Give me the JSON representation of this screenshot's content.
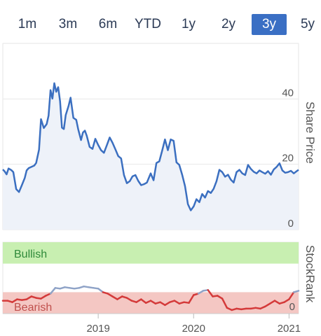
{
  "range_tabs": {
    "items": [
      "1m",
      "3m",
      "6m",
      "YTD",
      "1y",
      "2y",
      "3y",
      "5y"
    ],
    "selected": "3y"
  },
  "chart_data": [
    {
      "type": "line",
      "title": "",
      "xlabel": "",
      "ylabel": "Share Price",
      "ylim": [
        0,
        57
      ],
      "yticks": [
        "0",
        "20",
        "40"
      ],
      "xticks": [
        "2019",
        "2020",
        "2021"
      ],
      "grid": true,
      "color": "#3b6fc0",
      "fill": "#eef2f9",
      "x": [
        2018.0,
        2018.02,
        2018.04,
        2018.06,
        2018.09,
        2018.11,
        2018.14,
        2018.17,
        2018.2,
        2018.23,
        2018.25,
        2018.27,
        2018.3,
        2018.33,
        2018.35,
        2018.38,
        2018.4,
        2018.43,
        2018.46,
        2018.48,
        2018.5,
        2018.52,
        2018.54,
        2018.56,
        2018.58,
        2018.6,
        2018.62,
        2018.64,
        2018.66,
        2018.69,
        2018.71,
        2018.74,
        2018.77,
        2018.79,
        2018.82,
        2018.84,
        2018.86,
        2018.88,
        2018.91,
        2018.94,
        2018.97,
        2019.0,
        2019.03,
        2019.06,
        2019.09,
        2019.12,
        2019.15,
        2019.18,
        2019.21,
        2019.24,
        2019.27,
        2019.3,
        2019.33,
        2019.36,
        2019.39,
        2019.42,
        2019.45,
        2019.48,
        2019.51,
        2019.55,
        2019.58,
        2019.61,
        2019.64,
        2019.67,
        2019.7,
        2019.73,
        2019.76,
        2019.79,
        2019.82,
        2019.85,
        2019.88,
        2019.91,
        2019.94,
        2019.97,
        2020.0,
        2020.03,
        2020.06,
        2020.09,
        2020.12,
        2020.15,
        2020.18,
        2020.21,
        2020.24,
        2020.27,
        2020.3,
        2020.33,
        2020.36,
        2020.39,
        2020.42,
        2020.45,
        2020.48,
        2020.51,
        2020.54,
        2020.57,
        2020.6,
        2020.63,
        2020.66,
        2020.69,
        2020.72,
        2020.75,
        2020.78,
        2020.81,
        2020.84,
        2020.87,
        2020.9,
        2020.93,
        2020.96,
        2020.99,
        2021.02,
        2021.05,
        2021.08,
        2021.1
      ],
      "values": [
        18.4,
        17.8,
        16.9,
        18.7,
        18.2,
        17.6,
        12.4,
        11.5,
        13.6,
        15.8,
        18.1,
        18.8,
        19.2,
        19.6,
        20.4,
        24.5,
        33.8,
        31.1,
        32.3,
        34.9,
        42.7,
        40.1,
        44.8,
        42.2,
        43.6,
        39.3,
        31.2,
        30.8,
        35.1,
        37.9,
        40.4,
        34.2,
        33.6,
        30.8,
        27.4,
        29.7,
        30.3,
        28.7,
        25.3,
        24.7,
        27.8,
        25.9,
        24.3,
        23.5,
        25.8,
        28.2,
        26.6,
        24.6,
        22.5,
        21.8,
        16.7,
        14.2,
        14.8,
        16.3,
        16.7,
        14.9,
        13.6,
        13.9,
        14.4,
        17.2,
        15.1,
        20.4,
        20.9,
        24.1,
        27.6,
        24.3,
        27.6,
        27.2,
        20.6,
        19.8,
        16.8,
        13.3,
        7.8,
        5.9,
        7.1,
        9.3,
        8.4,
        10.9,
        9.8,
        11.8,
        11.2,
        12.5,
        14.8,
        18.3,
        17.6,
        16.2,
        16.8,
        15.3,
        14.4,
        17.6,
        18.3,
        17.2,
        16.7,
        19.8,
        18.6,
        17.7,
        17.2,
        18.1,
        17.6,
        17.1,
        17.9,
        16.8,
        18.4,
        19.2,
        20.3,
        18.1,
        17.4,
        17.6,
        18.0,
        17.2,
        17.9,
        18.3
      ]
    },
    {
      "type": "line",
      "title": "",
      "ylabel": "StockRank",
      "ylim": [
        0,
        100
      ],
      "yticks": [
        "0"
      ],
      "zones": [
        {
          "label": "Bullish",
          "from": 70,
          "to": 100,
          "color": "#c8efb1",
          "text_color": "#2f8a3a"
        },
        {
          "label": "Bearish",
          "from": 0,
          "to": 30,
          "color": "#f4c7c3",
          "text_color": "#c0504d"
        }
      ],
      "x": [
        2018.0,
        2018.05,
        2018.1,
        2018.15,
        2018.2,
        2018.25,
        2018.3,
        2018.35,
        2018.4,
        2018.45,
        2018.5,
        2018.55,
        2018.6,
        2018.65,
        2018.7,
        2018.75,
        2018.8,
        2018.85,
        2018.9,
        2018.95,
        2019.0,
        2019.05,
        2019.1,
        2019.15,
        2019.2,
        2019.25,
        2019.3,
        2019.35,
        2019.4,
        2019.45,
        2019.5,
        2019.55,
        2019.6,
        2019.65,
        2019.7,
        2019.75,
        2019.8,
        2019.85,
        2019.9,
        2019.95,
        2020.0,
        2020.05,
        2020.1,
        2020.15,
        2020.2,
        2020.25,
        2020.3,
        2020.35,
        2020.4,
        2020.45,
        2020.5,
        2020.55,
        2020.6,
        2020.65,
        2020.7,
        2020.75,
        2020.8,
        2020.85,
        2020.9,
        2020.95,
        2021.0,
        2021.05,
        2021.1
      ],
      "values": [
        18,
        18,
        16,
        20,
        19,
        20,
        24,
        22,
        21,
        25,
        28,
        36,
        35,
        37,
        36,
        35,
        36,
        38,
        37,
        36,
        35,
        30,
        28,
        24,
        20,
        24,
        22,
        18,
        16,
        20,
        15,
        18,
        14,
        16,
        12,
        16,
        18,
        14,
        16,
        15,
        26,
        28,
        32,
        33,
        24,
        25,
        21,
        8,
        5,
        7,
        6,
        7,
        7,
        8,
        7,
        10,
        14,
        18,
        14,
        16,
        20,
        30,
        32
      ],
      "positive_threshold": 30,
      "colors": {
        "above": "#8fa3c7",
        "below": "#d43a3a"
      }
    }
  ]
}
